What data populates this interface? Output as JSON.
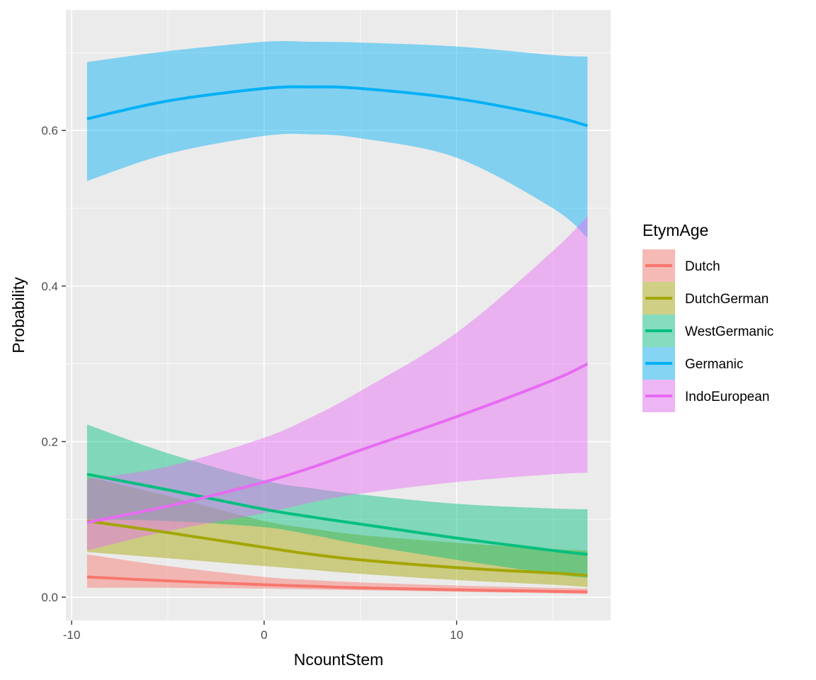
{
  "chart_data": {
    "type": "line",
    "title": "",
    "xlabel": "NcountStem",
    "ylabel": "Probability",
    "xlim": [
      -10.3,
      18
    ],
    "ylim": [
      -0.03,
      0.755
    ],
    "x_ticks": [
      -10,
      0,
      10
    ],
    "x_tick_labels": [
      "-10",
      "0",
      "10"
    ],
    "y_ticks": [
      0.0,
      0.2,
      0.4,
      0.6
    ],
    "y_tick_labels": [
      "0.0",
      "0.2",
      "0.4",
      "0.6"
    ],
    "grid": true,
    "legend": {
      "title": "EtymAge",
      "position": "right"
    },
    "x": [
      -9.2,
      -5,
      0,
      2.5,
      5,
      10,
      15,
      16.8
    ],
    "series": [
      {
        "name": "Dutch",
        "color": "#F8766D",
        "values": [
          0.026,
          0.021,
          0.016,
          0.014,
          0.012,
          0.0095,
          0.0075,
          0.0068
        ],
        "lower": [
          0.012,
          0.012,
          0.011,
          0.01,
          0.009,
          0.007,
          0.005,
          0.004
        ],
        "upper": [
          0.055,
          0.04,
          0.026,
          0.022,
          0.019,
          0.015,
          0.012,
          0.011
        ]
      },
      {
        "name": "DutchGerman",
        "color": "#A3A500",
        "values": [
          0.098,
          0.083,
          0.064,
          0.055,
          0.048,
          0.038,
          0.031,
          0.028
        ],
        "lower": [
          0.058,
          0.05,
          0.04,
          0.035,
          0.03,
          0.022,
          0.016,
          0.013
        ],
        "upper": [
          0.155,
          0.13,
          0.098,
          0.088,
          0.08,
          0.07,
          0.062,
          0.06
        ]
      },
      {
        "name": "WestGermanic",
        "color": "#00BF7D",
        "values": [
          0.158,
          0.138,
          0.113,
          0.103,
          0.094,
          0.076,
          0.06,
          0.055
        ],
        "lower": [
          0.1,
          0.098,
          0.09,
          0.08,
          0.068,
          0.048,
          0.03,
          0.025
        ],
        "upper": [
          0.222,
          0.185,
          0.15,
          0.14,
          0.132,
          0.12,
          0.114,
          0.113
        ]
      },
      {
        "name": "Germanic",
        "color": "#00B0F6",
        "values": [
          0.615,
          0.638,
          0.654,
          0.656,
          0.654,
          0.641,
          0.618,
          0.606
        ],
        "lower": [
          0.535,
          0.57,
          0.593,
          0.595,
          0.59,
          0.565,
          0.5,
          0.462
        ],
        "upper": [
          0.688,
          0.702,
          0.714,
          0.714,
          0.713,
          0.708,
          0.697,
          0.695
        ]
      },
      {
        "name": "IndoEuropean",
        "color": "#E76BF3",
        "values": [
          0.096,
          0.117,
          0.148,
          0.167,
          0.189,
          0.232,
          0.279,
          0.3
        ],
        "lower": [
          0.06,
          0.085,
          0.108,
          0.122,
          0.133,
          0.148,
          0.158,
          0.16
        ],
        "upper": [
          0.152,
          0.168,
          0.205,
          0.232,
          0.265,
          0.34,
          0.445,
          0.49
        ]
      }
    ]
  }
}
